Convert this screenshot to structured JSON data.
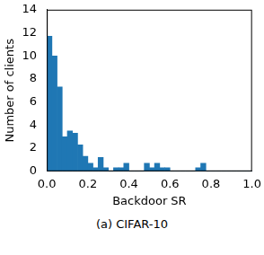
{
  "chart_data": {
    "type": "histogram",
    "caption": "(a) CIFAR-10",
    "x_label": "Backdoor SR",
    "y_label": "Number of clients",
    "bins": [
      0,
      0.025,
      0.05,
      0.075,
      0.1,
      0.125,
      0.15,
      0.175,
      0.2,
      0.225,
      0.25,
      0.275,
      0.3,
      0.325,
      0.35,
      0.375,
      0.4,
      0.425,
      0.45,
      0.475,
      0.5,
      0.525,
      0.55,
      0.575,
      0.6,
      0.625,
      0.65,
      0.675,
      0.7,
      0.725,
      0.75,
      0.775,
      0.8,
      0.825,
      0.85,
      0.875,
      0.9,
      0.925,
      0.95,
      0.975,
      1.0
    ],
    "values": [
      11.7,
      10,
      7.3,
      3,
      3.5,
      3.3,
      2.3,
      1.3,
      0.7,
      0.3,
      1.2,
      0.3,
      0,
      0.3,
      0.3,
      0.7,
      0,
      0,
      0,
      0.7,
      0.3,
      0.7,
      0.3,
      0.3,
      0,
      0,
      0,
      0,
      0,
      0.3,
      0.7,
      0,
      0,
      0,
      0,
      0,
      0,
      0,
      0,
      0
    ],
    "color": "#1f77b4",
    "xlim": [
      0,
      1.0
    ],
    "xticks": [
      {
        "value": 0,
        "label": "0.0"
      },
      {
        "value": 0.2,
        "label": "0.2"
      },
      {
        "value": 0.4,
        "label": "0.4"
      },
      {
        "value": 0.6,
        "label": "0.6"
      },
      {
        "value": 0.8,
        "label": "0.8"
      },
      {
        "value": 1.0,
        "label": "1.0"
      }
    ],
    "ylim": [
      0,
      14
    ],
    "yticks": [
      0,
      2,
      4,
      6,
      8,
      10,
      12,
      14
    ],
    "grid": false
  }
}
